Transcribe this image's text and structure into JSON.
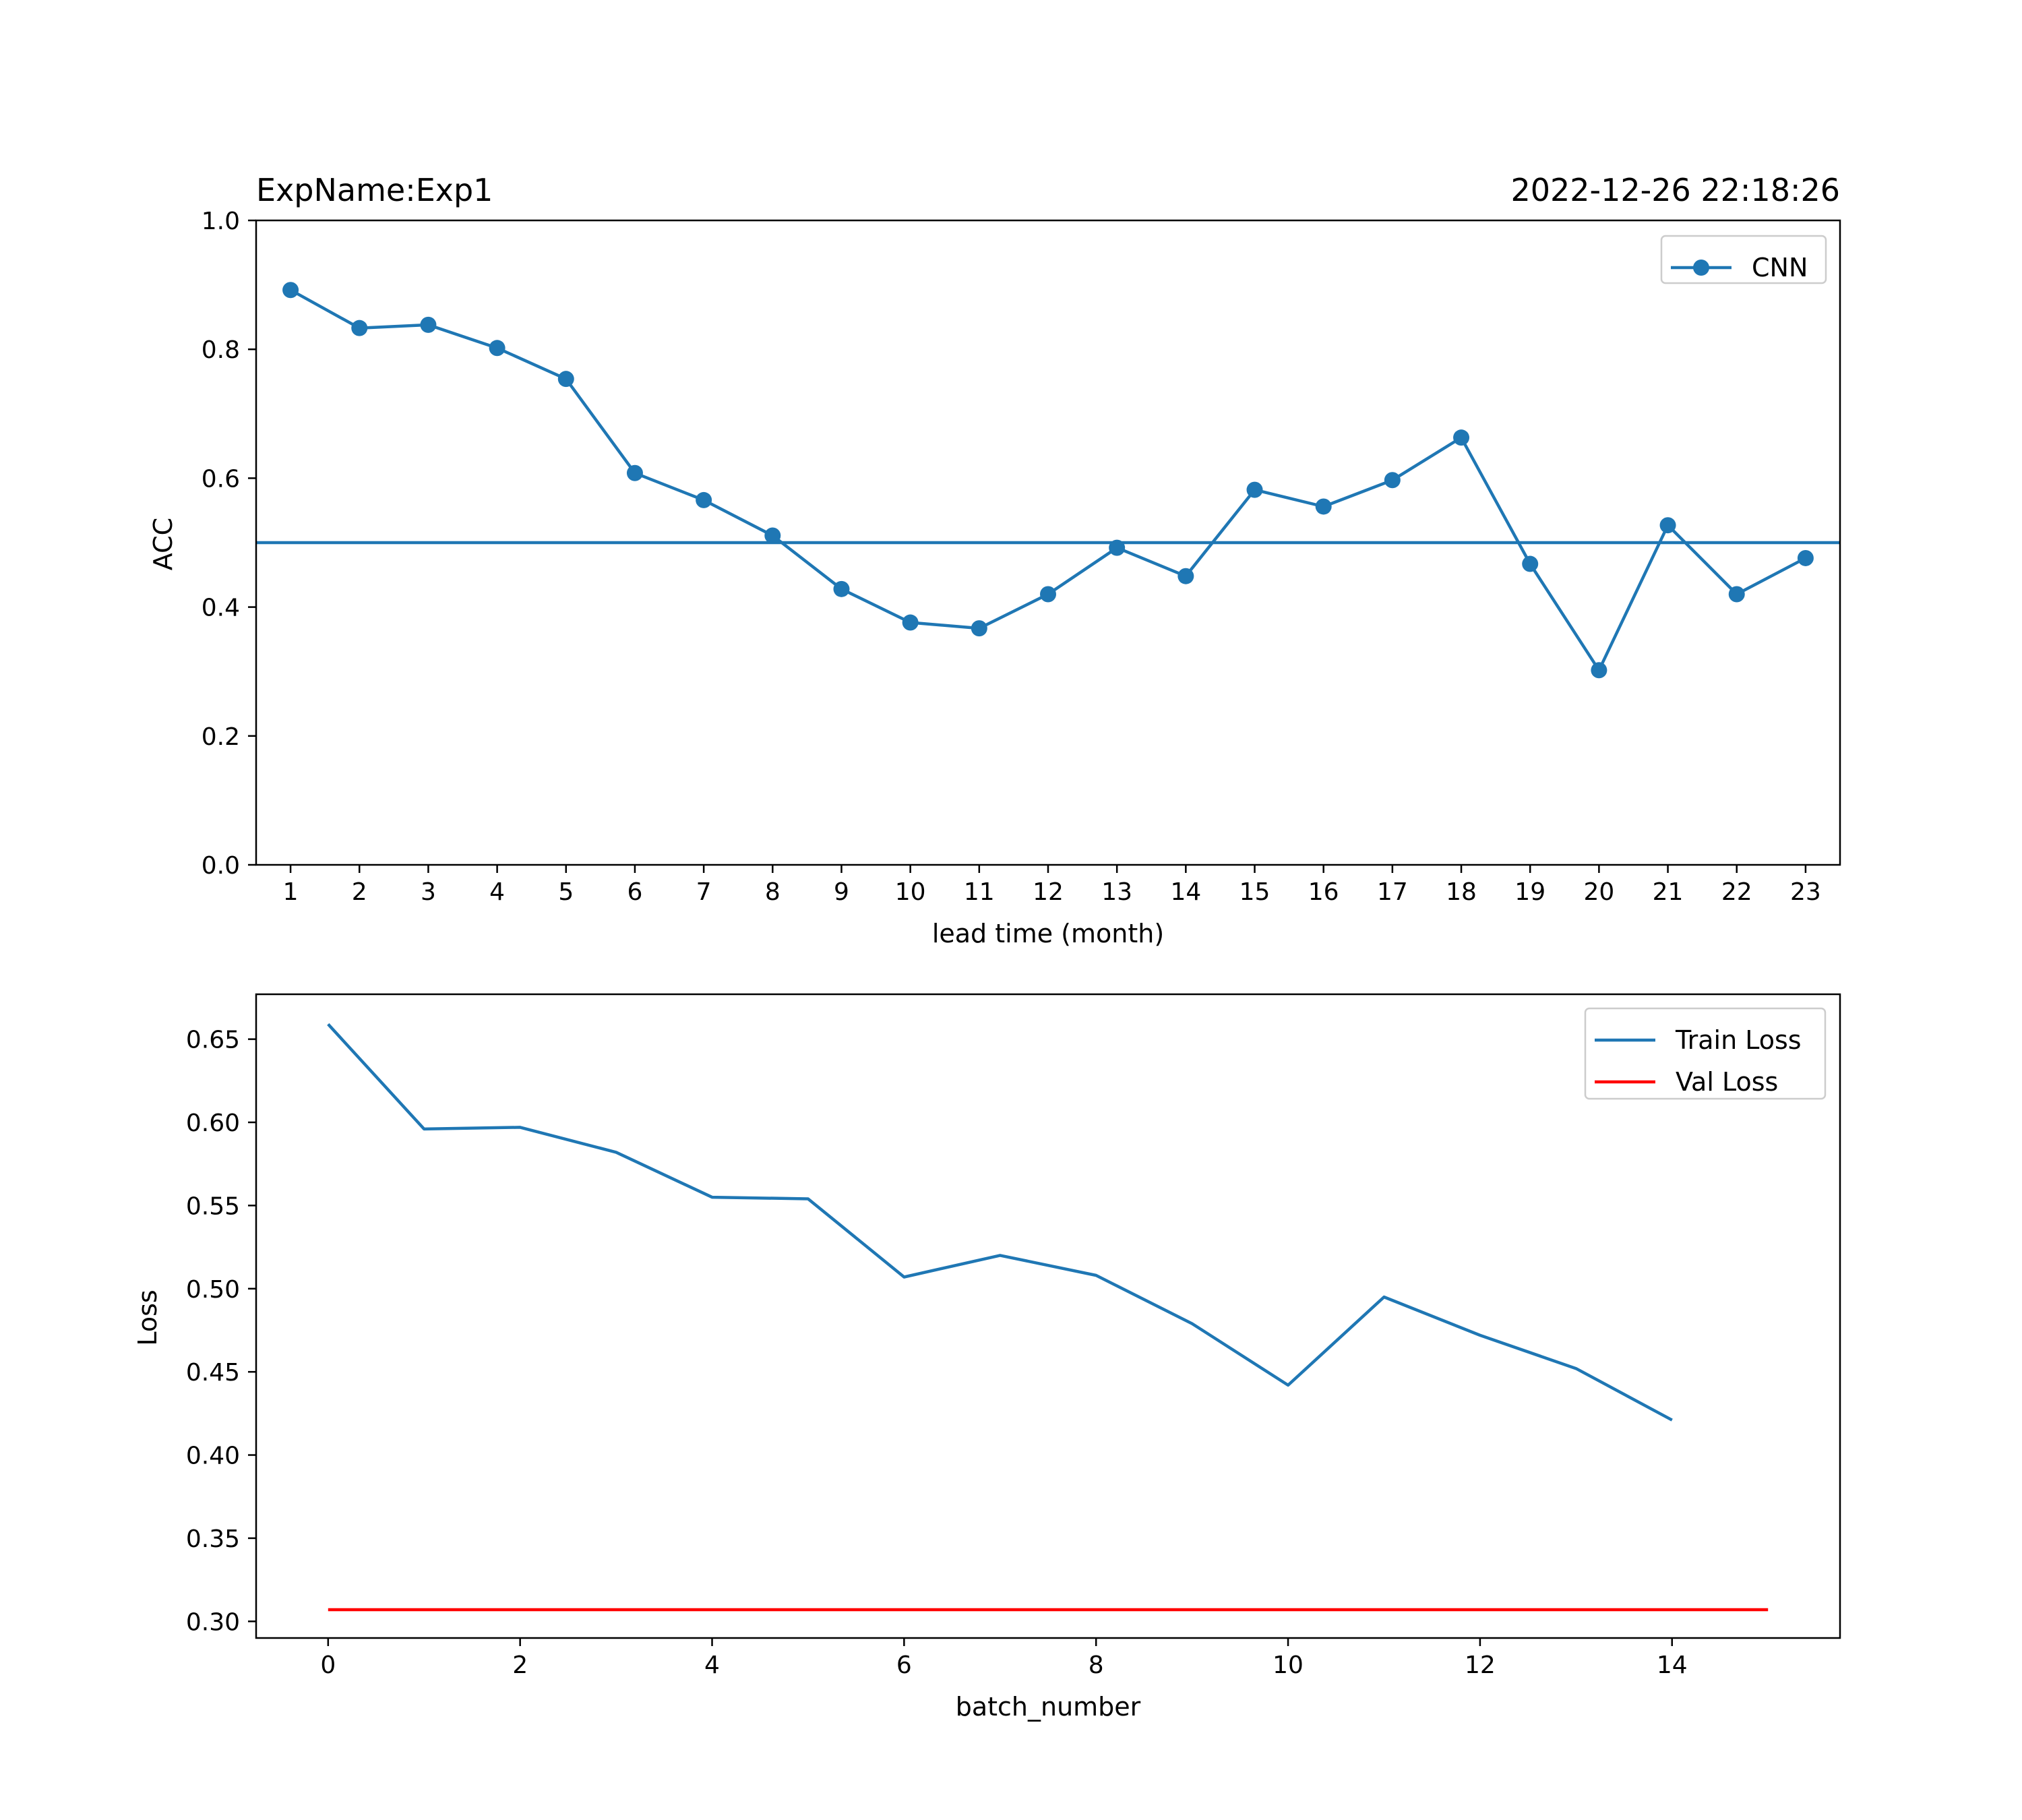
{
  "colors": {
    "blue": "#1f77b4",
    "red": "#ff0000",
    "axis": "#000000",
    "legend_border": "#cccccc"
  },
  "chart_data": [
    {
      "type": "line",
      "title_left": "ExpName:Exp1",
      "title_right": "2022-12-26 22:18:26",
      "xlabel": "lead time (month)",
      "ylabel": "ACC",
      "xlim": [
        0.5,
        23.5
      ],
      "ylim": [
        0.0,
        1.0
      ],
      "x_ticks": [
        1,
        2,
        3,
        4,
        5,
        6,
        7,
        8,
        9,
        10,
        11,
        12,
        13,
        14,
        15,
        16,
        17,
        18,
        19,
        20,
        21,
        22,
        23
      ],
      "y_ticks": [
        "0.0",
        "0.2",
        "0.4",
        "0.6",
        "0.8",
        "1.0"
      ],
      "legend_position": "top-right",
      "grid": false,
      "reference_line": 0.5,
      "series": [
        {
          "name": "CNN",
          "color": "#1f77b4",
          "marker": "circle",
          "x": [
            1,
            2,
            3,
            4,
            5,
            6,
            7,
            8,
            9,
            10,
            11,
            12,
            13,
            14,
            15,
            16,
            17,
            18,
            19,
            20,
            21,
            22,
            23
          ],
          "values": [
            0.892,
            0.833,
            0.838,
            0.802,
            0.754,
            0.608,
            0.566,
            0.511,
            0.428,
            0.376,
            0.367,
            0.42,
            0.492,
            0.448,
            0.582,
            0.556,
            0.597,
            0.663,
            0.467,
            0.302,
            0.527,
            0.42,
            0.476
          ]
        }
      ]
    },
    {
      "type": "line",
      "xlabel": "batch_number",
      "ylabel": "Loss",
      "xlim": [
        -0.75,
        15.75
      ],
      "ylim": [
        0.29,
        0.677
      ],
      "x_ticks": [
        0,
        2,
        4,
        6,
        8,
        10,
        12,
        14
      ],
      "y_ticks": [
        "0.30",
        "0.35",
        "0.40",
        "0.45",
        "0.50",
        "0.55",
        "0.60",
        "0.65"
      ],
      "legend_position": "top-right",
      "grid": false,
      "series": [
        {
          "name": "Train Loss",
          "color": "#1f77b4",
          "x": [
            0,
            1,
            2,
            3,
            4,
            5,
            6,
            7,
            8,
            9,
            10,
            11,
            12,
            13,
            14
          ],
          "values": [
            0.659,
            0.596,
            0.597,
            0.582,
            0.555,
            0.554,
            0.507,
            0.52,
            0.508,
            0.479,
            0.442,
            0.495,
            0.472,
            0.452,
            0.421
          ]
        },
        {
          "name": "Val Loss",
          "color": "#ff0000",
          "x": [
            0,
            15
          ],
          "values": [
            0.307,
            0.307
          ]
        }
      ]
    }
  ]
}
